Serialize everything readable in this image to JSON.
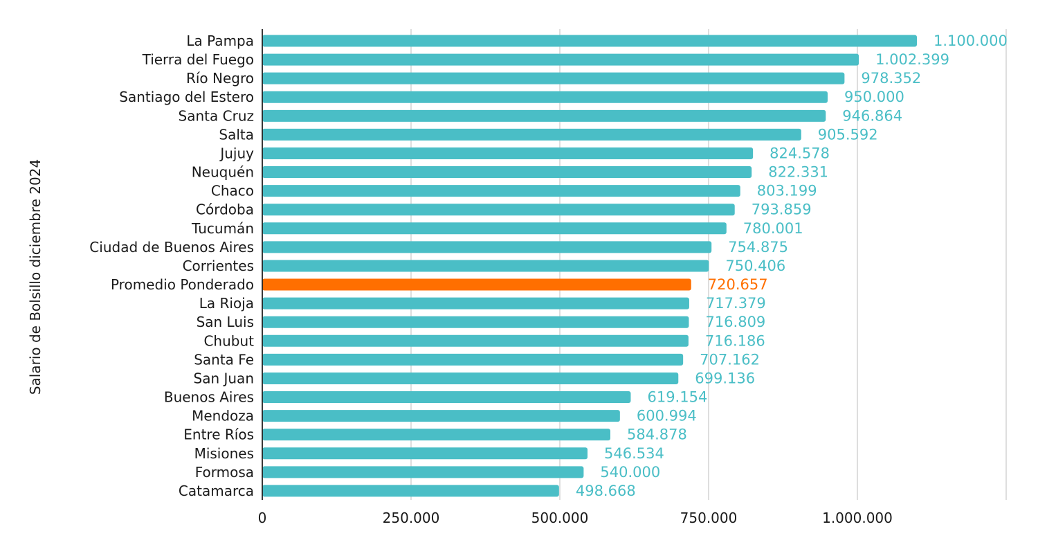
{
  "chart_data": {
    "type": "bar",
    "orientation": "horizontal",
    "title": "",
    "xlabel": "",
    "ylabel": "Salario de Bolsillo diciembre 2024",
    "xlim": [
      0,
      1250000
    ],
    "x_ticks": [
      0,
      250000,
      500000,
      750000,
      1000000
    ],
    "x_tick_labels": [
      "0",
      "250.000",
      "500.000",
      "750.000",
      "1.000.000"
    ],
    "grid": true,
    "colors": {
      "default": "#4ABEC6",
      "highlight": "#FF6F00",
      "axis": "#222222",
      "grid": "#CCCCCC"
    },
    "categories": [
      "La Pampa",
      "Tierra del Fuego",
      "Río Negro",
      "Santiago del Estero",
      "Santa Cruz",
      "Salta",
      "Jujuy",
      "Neuquén",
      "Chaco",
      "Córdoba",
      "Tucumán",
      "Ciudad de Buenos Aires",
      "Corrientes",
      "Promedio Ponderado",
      "La Rioja",
      "San Luis",
      "Chubut",
      "Santa Fe",
      "San Juan",
      "Buenos Aires",
      "Mendoza",
      "Entre Ríos",
      "Misiones",
      "Formosa",
      "Catamarca"
    ],
    "values": [
      1100000,
      1002399,
      978352,
      950000,
      946864,
      905592,
      824578,
      822331,
      803199,
      793859,
      780001,
      754875,
      750406,
      720657,
      717379,
      716809,
      716186,
      707162,
      699136,
      619154,
      600994,
      584878,
      546534,
      540000,
      498668
    ],
    "value_labels": [
      "1.100.000",
      "1.002.399",
      "978.352",
      "950.000",
      "946.864",
      "905.592",
      "824.578",
      "822.331",
      "803.199",
      "793.859",
      "780.001",
      "754.875",
      "750.406",
      "720.657",
      "717.379",
      "716.809",
      "716.186",
      "707.162",
      "699.136",
      "619.154",
      "600.994",
      "584.878",
      "546.534",
      "540.000",
      "498.668"
    ],
    "highlight_category": "Promedio Ponderado"
  }
}
